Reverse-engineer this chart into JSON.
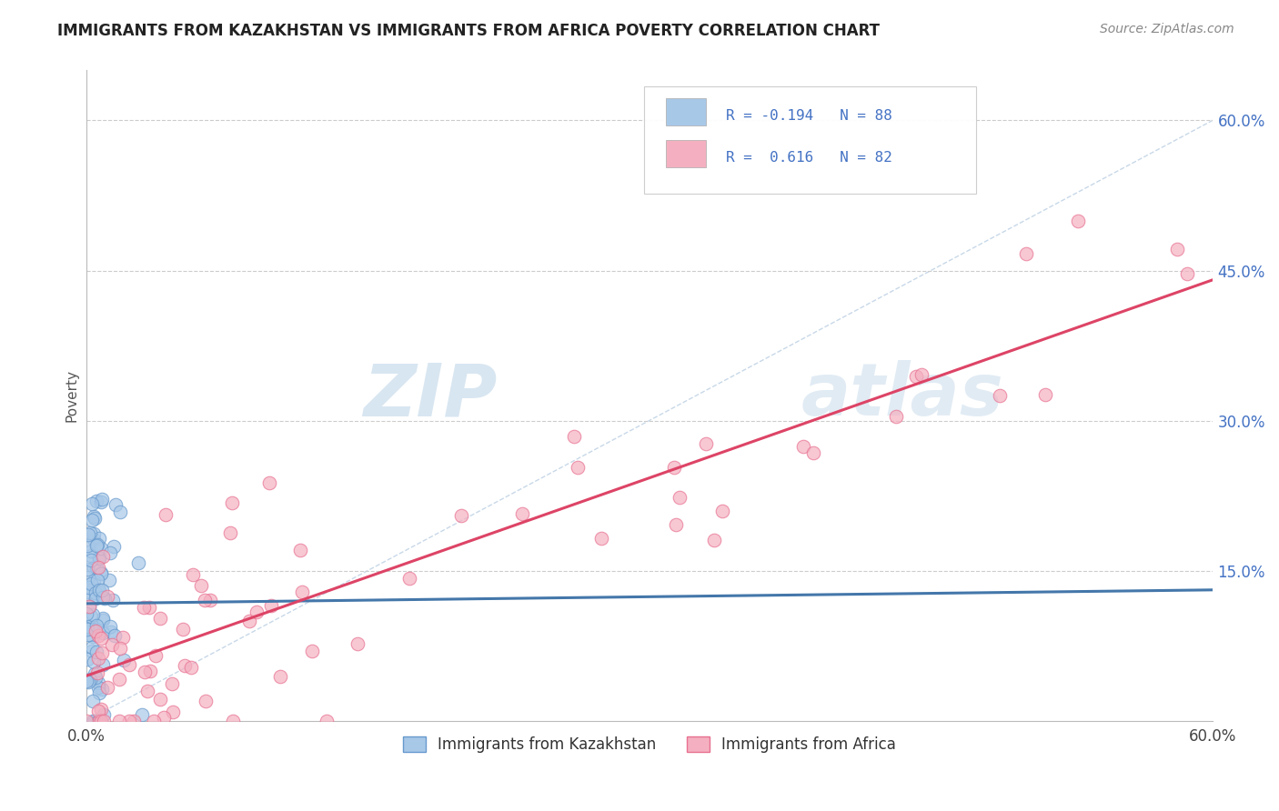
{
  "title": "IMMIGRANTS FROM KAZAKHSTAN VS IMMIGRANTS FROM AFRICA POVERTY CORRELATION CHART",
  "source": "Source: ZipAtlas.com",
  "ylabel": "Poverty",
  "xlim": [
    0.0,
    0.6
  ],
  "ylim": [
    0.0,
    0.65
  ],
  "x_tick_labels": [
    "0.0%",
    "60.0%"
  ],
  "y_tick_labels_right": [
    "60.0%",
    "45.0%",
    "30.0%",
    "15.0%"
  ],
  "y_tick_positions_right": [
    0.6,
    0.45,
    0.3,
    0.15
  ],
  "watermark_zip": "ZIP",
  "watermark_atlas": "atlas",
  "color_kaz": "#a8c8e8",
  "color_kaz_edge": "#6699cc",
  "color_africa": "#f4b0c0",
  "color_africa_edge": "#e87090",
  "color_kaz_line": "#4477aa",
  "color_africa_line": "#dd4466",
  "color_grid": "#cccccc",
  "background_color": "#ffffff",
  "legend_box_color": "#f0f0f0",
  "legend_text_color": "#4472c4",
  "kaz_seed": 123,
  "africa_seed": 456,
  "n_kaz": 88,
  "n_africa": 82
}
